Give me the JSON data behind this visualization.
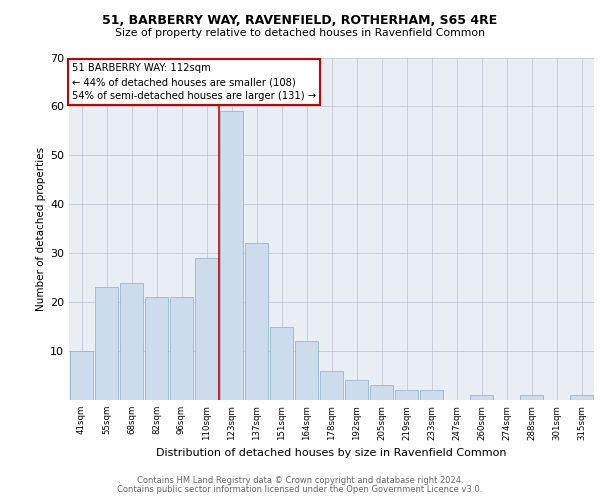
{
  "title1": "51, BARBERRY WAY, RAVENFIELD, ROTHERHAM, S65 4RE",
  "title2": "Size of property relative to detached houses in Ravenfield Common",
  "xlabel": "Distribution of detached houses by size in Ravenfield Common",
  "ylabel": "Number of detached properties",
  "footer1": "Contains HM Land Registry data © Crown copyright and database right 2024.",
  "footer2": "Contains public sector information licensed under the Open Government Licence v3.0.",
  "annotation_line1": "51 BARBERRY WAY: 112sqm",
  "annotation_line2": "← 44% of detached houses are smaller (108)",
  "annotation_line3": "54% of semi-detached houses are larger (131) →",
  "bar_color": "#ccdcec",
  "bar_edge_color": "#88b0cc",
  "highlight_color": "#cc0000",
  "background_color": "#e8eef4",
  "categories": [
    "41sqm",
    "55sqm",
    "68sqm",
    "82sqm",
    "96sqm",
    "110sqm",
    "123sqm",
    "137sqm",
    "151sqm",
    "164sqm",
    "178sqm",
    "192sqm",
    "205sqm",
    "219sqm",
    "233sqm",
    "247sqm",
    "260sqm",
    "274sqm",
    "288sqm",
    "301sqm",
    "315sqm"
  ],
  "values": [
    10,
    23,
    24,
    21,
    21,
    29,
    59,
    32,
    15,
    12,
    6,
    4,
    3,
    2,
    2,
    0,
    1,
    0,
    1,
    0,
    1
  ],
  "highlight_bin_index": 6,
  "ylim": [
    0,
    70
  ],
  "yticks": [
    0,
    10,
    20,
    30,
    40,
    50,
    60,
    70
  ]
}
